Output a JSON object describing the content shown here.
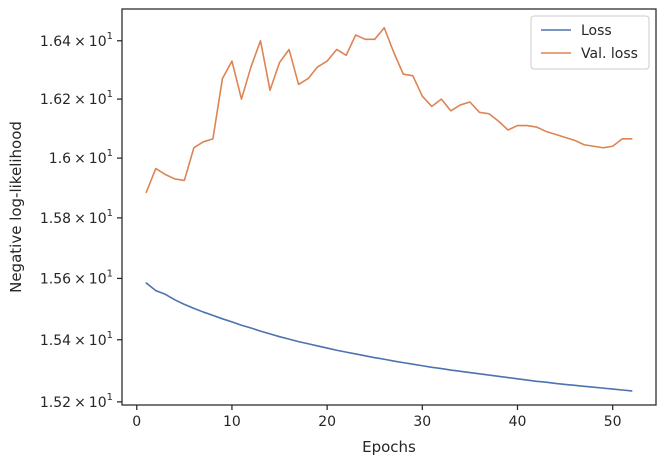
{
  "chart_data": {
    "type": "line",
    "xlabel": "Epochs",
    "ylabel": "Negative log-likelihood",
    "xlim": [
      -1.55,
      54.55
    ],
    "ylim": [
      15.19,
      16.51
    ],
    "y_scale": "log",
    "grid": false,
    "legend_position": "top-right",
    "x_ticks": [
      {
        "value": 0,
        "label": "0"
      },
      {
        "value": 10,
        "label": "10"
      },
      {
        "value": 20,
        "label": "20"
      },
      {
        "value": 30,
        "label": "30"
      },
      {
        "value": 40,
        "label": "40"
      },
      {
        "value": 50,
        "label": "50"
      }
    ],
    "y_ticks": [
      {
        "value": 15.2,
        "mantissa": "1.52",
        "sep": "×",
        "base": "10",
        "exp": "1"
      },
      {
        "value": 15.4,
        "mantissa": "1.54",
        "sep": "×",
        "base": "10",
        "exp": "1"
      },
      {
        "value": 15.6,
        "mantissa": "1.56",
        "sep": "×",
        "base": "10",
        "exp": "1"
      },
      {
        "value": 15.8,
        "mantissa": "1.58",
        "sep": "×",
        "base": "10",
        "exp": "1"
      },
      {
        "value": 16.0,
        "mantissa": "1.6",
        "sep": "×",
        "base": "10",
        "exp": "1"
      },
      {
        "value": 16.2,
        "mantissa": "1.62",
        "sep": "×",
        "base": "10",
        "exp": "1"
      },
      {
        "value": 16.4,
        "mantissa": "1.64",
        "sep": "×",
        "base": "10",
        "exp": "1"
      }
    ],
    "x": [
      1,
      2,
      3,
      4,
      5,
      6,
      7,
      8,
      9,
      10,
      11,
      12,
      13,
      14,
      15,
      16,
      17,
      18,
      19,
      20,
      21,
      22,
      23,
      24,
      25,
      26,
      27,
      28,
      29,
      30,
      31,
      32,
      33,
      34,
      35,
      36,
      37,
      38,
      39,
      40,
      41,
      42,
      43,
      44,
      45,
      46,
      47,
      48,
      49,
      50,
      51,
      52
    ],
    "series": [
      {
        "name": "Loss",
        "color": "#4c72b0",
        "values": [
          15.585,
          15.56,
          15.548,
          15.53,
          15.515,
          15.502,
          15.49,
          15.479,
          15.468,
          15.458,
          15.447,
          15.438,
          15.428,
          15.419,
          15.41,
          15.402,
          15.394,
          15.387,
          15.38,
          15.373,
          15.366,
          15.36,
          15.354,
          15.348,
          15.342,
          15.337,
          15.331,
          15.326,
          15.321,
          15.316,
          15.311,
          15.307,
          15.302,
          15.298,
          15.294,
          15.29,
          15.286,
          15.282,
          15.278,
          15.274,
          15.27,
          15.266,
          15.263,
          15.259,
          15.256,
          15.253,
          15.25,
          15.247,
          15.244,
          15.241,
          15.238,
          15.235
        ]
      },
      {
        "name": "Val. loss",
        "color": "#dd8452",
        "values": [
          15.885,
          15.965,
          15.945,
          15.93,
          15.925,
          16.035,
          16.055,
          16.065,
          16.27,
          16.33,
          16.2,
          16.31,
          16.4,
          16.23,
          16.325,
          16.37,
          16.25,
          16.27,
          16.31,
          16.33,
          16.37,
          16.35,
          16.42,
          16.405,
          16.405,
          16.445,
          16.36,
          16.285,
          16.28,
          16.21,
          16.175,
          16.2,
          16.16,
          16.18,
          16.19,
          16.155,
          16.15,
          16.125,
          16.095,
          16.11,
          16.11,
          16.105,
          16.09,
          16.08,
          16.07,
          16.06,
          16.045,
          16.04,
          16.035,
          16.04,
          16.065,
          16.065
        ]
      }
    ]
  }
}
